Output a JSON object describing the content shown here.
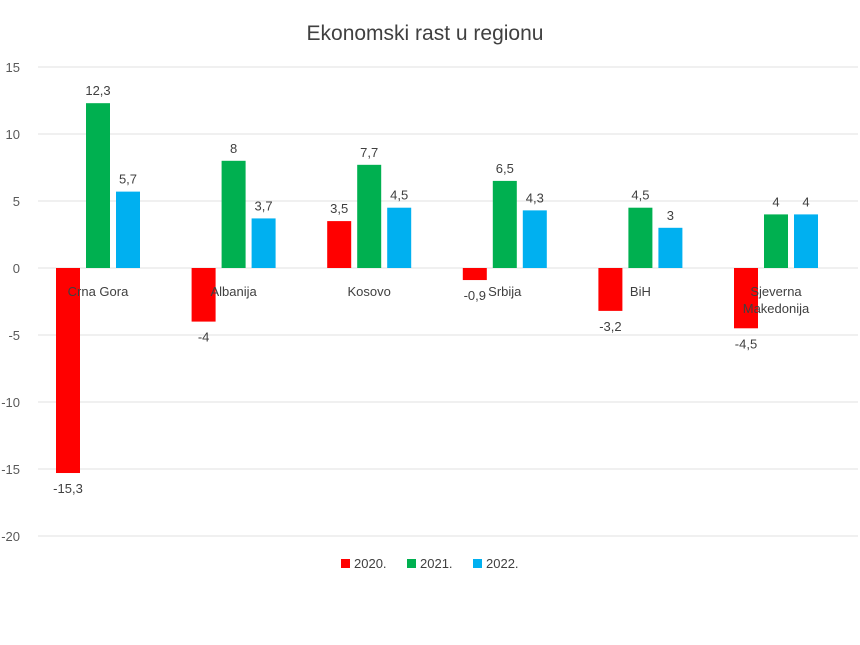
{
  "chart_data": {
    "type": "bar",
    "title": "Ekonomski rast u regionu",
    "xlabel": "",
    "ylabel": "",
    "ylim": [
      -20,
      15
    ],
    "yticks": [
      15,
      10,
      5,
      0,
      -5,
      -10,
      -15,
      -20
    ],
    "ytick_labels": [
      "15",
      "10",
      "5",
      "0",
      "-5",
      "-10",
      "-15",
      "-20"
    ],
    "grid": true,
    "legend_position": "bottom-center",
    "categories": [
      [
        "Crna Gora"
      ],
      [
        "Albanija"
      ],
      [
        "Kosovo"
      ],
      [
        "Srbija"
      ],
      [
        "BiH"
      ],
      [
        "Sjeverna",
        "Makedonija"
      ]
    ],
    "series": [
      {
        "name": "2020.",
        "color": "#ff0000",
        "values": [
          -15.3,
          -4,
          3.5,
          -0.9,
          -3.2,
          -4.5
        ],
        "labels": [
          "-15,3",
          "-4",
          "3,5",
          "-0,9",
          "-3,2",
          "-4,5"
        ]
      },
      {
        "name": "2021.",
        "color": "#00b050",
        "values": [
          12.3,
          8,
          7.7,
          6.5,
          4.5,
          4
        ],
        "labels": [
          "12,3",
          "8",
          "7,7",
          "6,5",
          "4,5",
          "4"
        ]
      },
      {
        "name": "2022.",
        "color": "#00b0f0",
        "values": [
          5.7,
          3.7,
          4.5,
          4.3,
          3,
          4
        ],
        "labels": [
          "5,7",
          "3,7",
          "4,5",
          "4,3",
          "3",
          "4"
        ]
      }
    ]
  }
}
